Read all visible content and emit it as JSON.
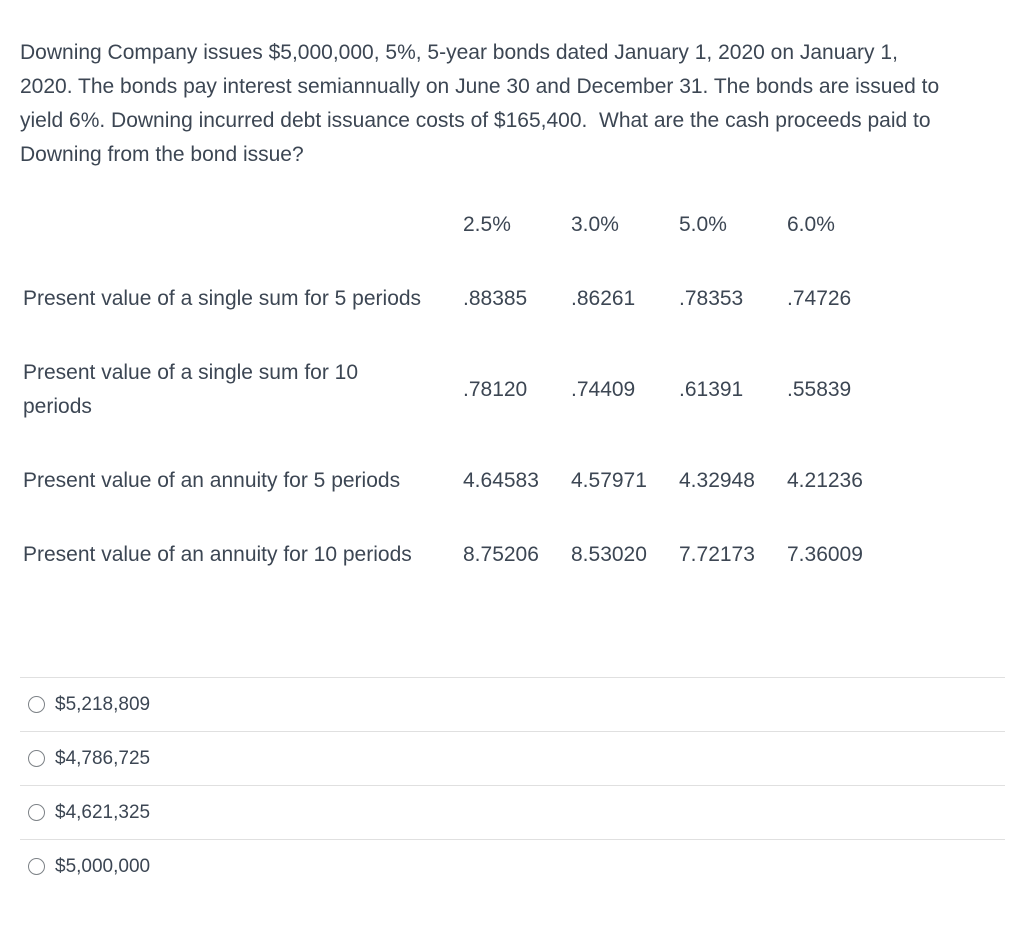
{
  "question": {
    "text": "Downing Company issues $5,000,000, 5%, 5-year bonds dated January 1, 2020 on January 1,\n2020. The bonds pay interest semiannually on June 30 and December 31. The bonds are issued to\nyield 6%. Downing incurred debt issuance costs of $165,400.  What are the cash proceeds paid to\nDowning from the bond issue?"
  },
  "table": {
    "rate_headers": [
      "2.5%",
      "3.0%",
      "5.0%",
      "6.0%"
    ],
    "rows": [
      {
        "label": "Present value of a single sum for 5 periods",
        "values": [
          ".88385",
          ".86261",
          ".78353",
          ".74726"
        ]
      },
      {
        "label": "Present value of a single sum for 10\nperiods",
        "values": [
          ".78120",
          ".74409",
          ".61391",
          ".55839"
        ]
      },
      {
        "label": "Present value of an annuity for 5 periods",
        "values": [
          "4.64583",
          "4.57971",
          "4.32948",
          "4.21236"
        ]
      },
      {
        "label": "Present value of an annuity for 10 periods",
        "values": [
          "8.75206",
          "8.53020",
          "7.72173",
          "7.36009"
        ]
      }
    ]
  },
  "options": [
    {
      "label": "$5,218,809",
      "selected": false
    },
    {
      "label": "$4,786,725",
      "selected": false
    },
    {
      "label": "$4,621,325",
      "selected": false
    },
    {
      "label": "$5,000,000",
      "selected": false
    }
  ],
  "colors": {
    "text": "#3c4653",
    "divider": "#e0e0e0",
    "radio_border": "#7d8287",
    "background": "#ffffff"
  }
}
